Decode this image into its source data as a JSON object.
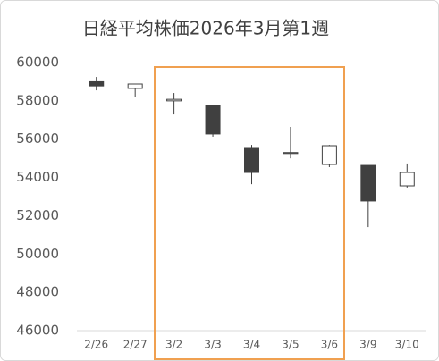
{
  "chart_data": {
    "type": "candlestick",
    "title": "日経平均株価2026年3月第1週",
    "categories": [
      "2/26",
      "2/27",
      "3/2",
      "3/3",
      "3/4",
      "3/5",
      "3/6",
      "3/9",
      "3/10"
    ],
    "open": [
      59000,
      58650,
      58000,
      57760,
      55520,
      55250,
      54680,
      54630,
      53560
    ],
    "high": [
      59250,
      58900,
      58410,
      57800,
      55700,
      56640,
      55700,
      54630,
      54730
    ],
    "low": [
      58550,
      58200,
      57290,
      56130,
      53650,
      55000,
      54540,
      51410,
      53470
    ],
    "close": [
      58780,
      58880,
      58080,
      56270,
      54260,
      55300,
      55660,
      52770,
      54260
    ],
    "up_color": "#ffffff",
    "down_color": "#404040",
    "edge_color": "#404040",
    "ylim": [
      46000,
      60000
    ],
    "yticks": [
      46000,
      48000,
      50000,
      52000,
      54000,
      56000,
      58000,
      60000
    ],
    "grid": false
  }
}
